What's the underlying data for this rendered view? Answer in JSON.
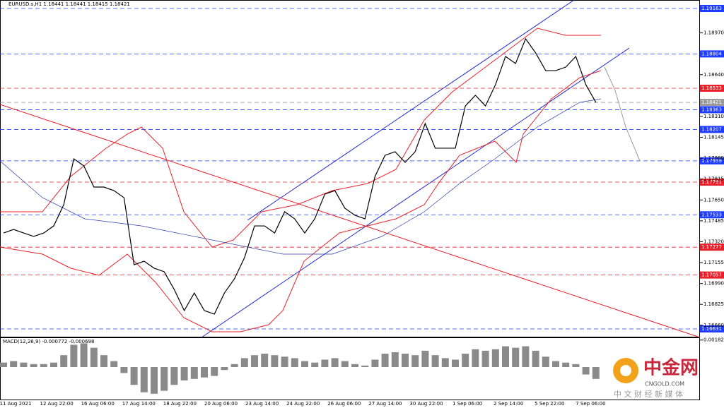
{
  "header": {
    "title": "EURUSD.s,H1  1.18441 1.18441 1.18415 1.18421"
  },
  "chart_data": [
    {
      "type": "line",
      "color": "#000000",
      "ylim": [
        1.16564,
        1.1923
      ],
      "yticks": [
        {
          "value": 1.1897,
          "label": "1.18970"
        },
        {
          "value": 1.1864,
          "label": "1.18640"
        },
        {
          "value": 1.1831,
          "label": "1.18310"
        },
        {
          "value": 1.18145,
          "label": "1.18145"
        },
        {
          "value": 1.1798,
          "label": "1.17980"
        },
        {
          "value": 1.17815,
          "label": "1.17815"
        },
        {
          "value": 1.1765,
          "label": "1.17650"
        },
        {
          "value": 1.17485,
          "label": "1.17485"
        },
        {
          "value": 1.1732,
          "label": "1.17320"
        },
        {
          "value": 1.17155,
          "label": "1.17155"
        },
        {
          "value": 1.1699,
          "label": "1.16990"
        },
        {
          "value": 1.16825,
          "label": "1.16825"
        },
        {
          "value": 1.1666,
          "label": "1.16660"
        }
      ],
      "xtick_labels": [
        "11 Aug 2021",
        "12 Aug 22:00",
        "16 Aug 06:00",
        "17 Aug 14:00",
        "18 Aug 22:00",
        "20 Aug 06:00",
        "23 Aug 14:00",
        "24 Aug 22:00",
        "26 Aug 06:00",
        "27 Aug 14:00",
        "30 Aug 22:00",
        "1 Sep 06:00",
        "2 Sep 14:00",
        "5 Sep 22:00",
        "7 Sep 06:00"
      ],
      "levels": [
        {
          "value": 1.19163,
          "color": "#1e3cff"
        },
        {
          "value": 1.18804,
          "color": "#1e3cff"
        },
        {
          "value": 1.18533,
          "color": "#e8202a"
        },
        {
          "value": 1.18421,
          "color": "#9a9a9a"
        },
        {
          "value": 1.18363,
          "color": "#1e3cff"
        },
        {
          "value": 1.18207,
          "color": "#1e3cff"
        },
        {
          "value": 1.17959,
          "color": "#1e3cff"
        },
        {
          "value": 1.17791,
          "color": "#e8202a"
        },
        {
          "value": 1.17533,
          "color": "#1e3cff"
        },
        {
          "value": 1.17277,
          "color": "#e8202a"
        },
        {
          "value": 1.17057,
          "color": "#e8202a"
        },
        {
          "value": 1.16631,
          "color": "#1e3cff"
        }
      ],
      "values": [
        1.17389,
        1.17417,
        1.17389,
        1.17362,
        1.17389,
        1.17445,
        1.17613,
        1.17975,
        1.17919,
        1.17752,
        1.17752,
        1.17724,
        1.17668,
        1.17138,
        1.17166,
        1.17111,
        1.17083,
        1.16943,
        1.16776,
        1.16915,
        1.16776,
        1.16748,
        1.16915,
        1.17027,
        1.17194,
        1.17445,
        1.17445,
        1.17389,
        1.17557,
        1.17501,
        1.17389,
        1.17501,
        1.17696,
        1.17724,
        1.17585,
        1.17529,
        1.17501,
        1.17836,
        1.18003,
        1.18031,
        1.17947,
        1.18031,
        1.18254,
        1.18059,
        1.18059,
        1.18059,
        1.18393,
        1.18477,
        1.18393,
        1.18561,
        1.18784,
        1.18728,
        1.18923,
        1.18812,
        1.18672,
        1.18672,
        1.187,
        1.18784,
        1.18561,
        1.18421
      ]
    },
    {
      "type": "bar",
      "title": "MACD(12,26,9) -0.000772 -0.000698",
      "color": "#8a8a8a",
      "ylim": [
        -0.00195,
        0.00195
      ],
      "yticks": [
        0.001822
      ],
      "values": [
        0.0003,
        0.0004,
        0.0003,
        0.0002,
        0.0002,
        0.0003,
        0.0008,
        0.0015,
        0.0016,
        0.0013,
        0.0008,
        0.0004,
        -0.0004,
        -0.0012,
        -0.0017,
        -0.0018,
        -0.0016,
        -0.0012,
        -0.0009,
        -0.0008,
        -0.0007,
        -0.0006,
        -0.0002,
        0.0002,
        0.0006,
        0.0008,
        0.0009,
        0.0008,
        0.0007,
        0.0006,
        0.0004,
        0.0003,
        0.0005,
        0.0006,
        0.0004,
        0.0002,
        0.0001,
        0.0005,
        0.0009,
        0.001,
        0.0009,
        0.0008,
        0.0011,
        0.0008,
        0.0006,
        0.0005,
        0.0009,
        0.0012,
        0.0011,
        0.0012,
        0.0014,
        0.0013,
        0.0014,
        0.0011,
        0.0007,
        0.0004,
        0.0003,
        0.0002,
        -0.0005,
        -0.0008
      ]
    }
  ],
  "watermark": {
    "brand": "中金网",
    "site": "CNGOLD.COM",
    "slogan": "中 文 财 经 新 媒 体"
  }
}
